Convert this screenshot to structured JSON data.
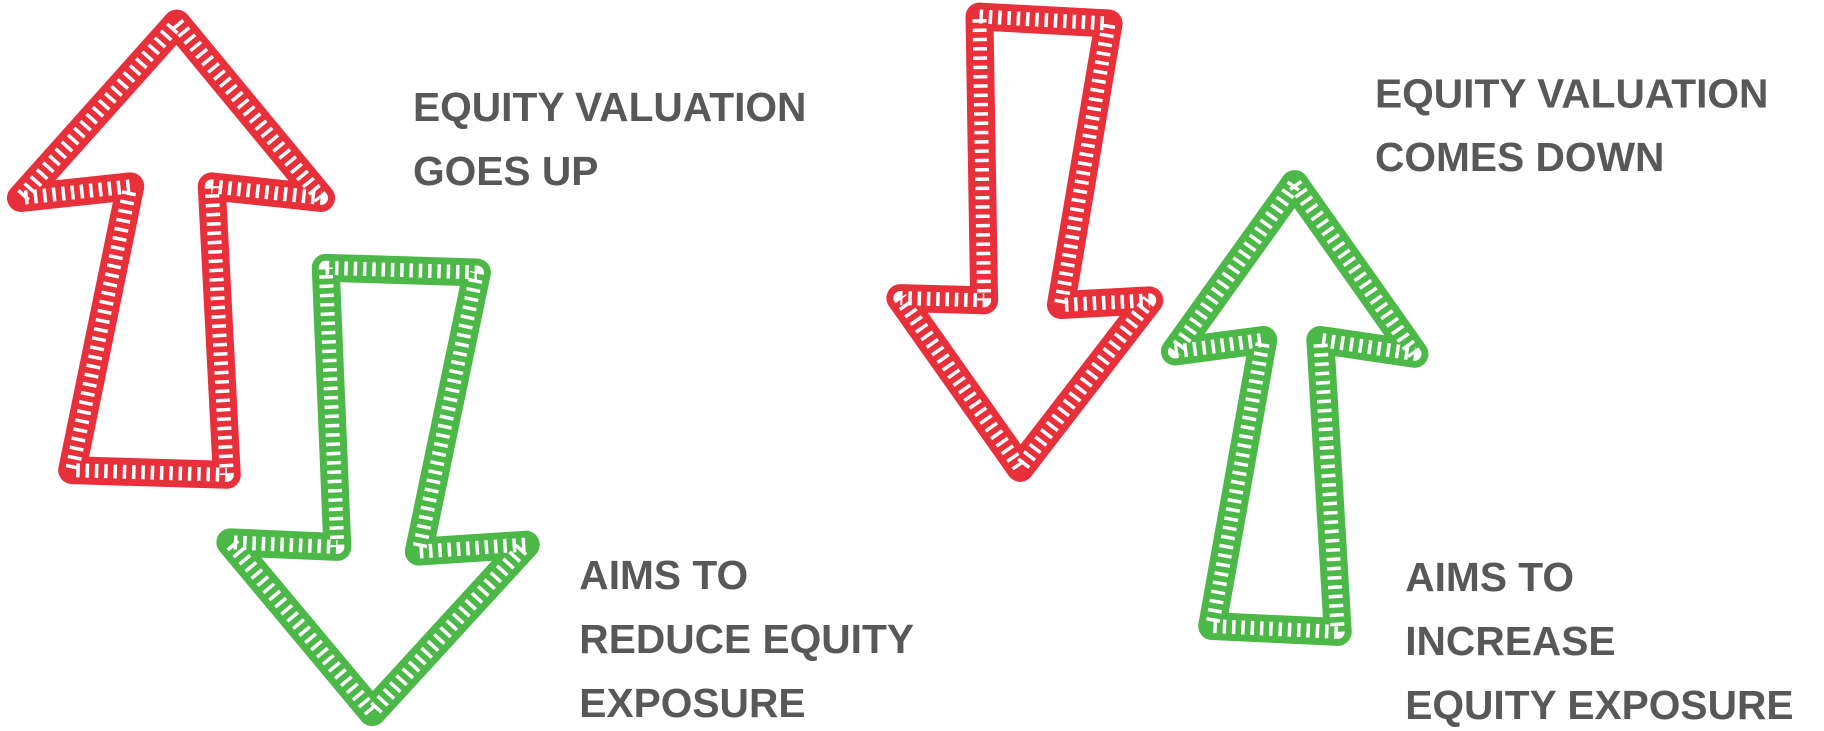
{
  "left": {
    "top_label": [
      "EQUITY VALUATION",
      "GOES UP"
    ],
    "bottom_label": [
      "AIMS TO",
      "REDUCE EQUITY",
      "EXPOSURE"
    ]
  },
  "right": {
    "top_label": [
      "EQUITY VALUATION",
      "COMES DOWN"
    ],
    "bottom_label": [
      "AIMS TO",
      "INCREASE",
      "EQUITY EXPOSURE"
    ]
  }
}
